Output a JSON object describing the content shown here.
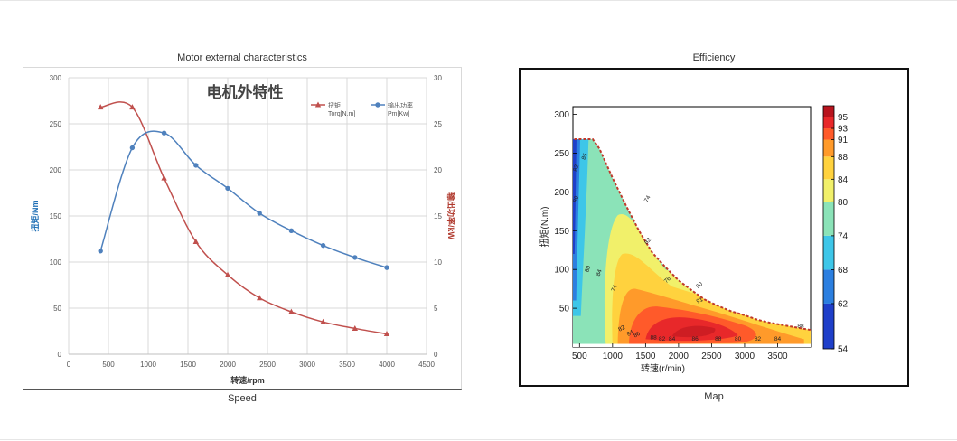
{
  "captions": {
    "left_top": "Motor external characteristics",
    "left_bottom": "Speed",
    "right_top": "Efficiency",
    "right_bottom": "Map"
  },
  "chart_data": [
    {
      "type": "line",
      "title": "电机外特性",
      "xlabel": "转速/rpm",
      "ylabel_left": "扭矩/Nm",
      "ylabel_right": "输出功率/kW",
      "xlim": [
        0,
        4500
      ],
      "ylim_left": [
        0,
        300
      ],
      "ylim_right": [
        0,
        30
      ],
      "x_ticks": [
        0,
        500,
        1000,
        1500,
        2000,
        2500,
        3000,
        3500,
        4000,
        4500
      ],
      "y_left_ticks": [
        0,
        50,
        100,
        150,
        200,
        250,
        300
      ],
      "y_right_ticks": [
        0,
        5,
        10,
        15,
        20,
        25,
        30
      ],
      "grid": true,
      "legend_position": "top-right",
      "series": [
        {
          "name": "扭矩",
          "name_unit": "Torq[N.m]",
          "axis": "left",
          "marker": "triangle",
          "color": "#c0504d",
          "x": [
            400,
            800,
            1200,
            1600,
            2000,
            2400,
            2800,
            3200,
            3600,
            4000
          ],
          "y": [
            268,
            268,
            191,
            122,
            86,
            61,
            46,
            35,
            28,
            22
          ]
        },
        {
          "name": "输出功率",
          "name_unit": "Pm[Kw]",
          "axis": "right",
          "marker": "circle",
          "color": "#4f81bd",
          "x": [
            400,
            800,
            1200,
            1600,
            2000,
            2400,
            2800,
            3200,
            3600,
            4000
          ],
          "y": [
            11.2,
            22.4,
            24.0,
            20.5,
            18.0,
            15.3,
            13.4,
            11.8,
            10.5,
            9.4
          ]
        }
      ]
    },
    {
      "type": "heatmap",
      "xlabel": "转速(r/min)",
      "ylabel": "扭矩(N.m)",
      "xlim": [
        400,
        4000
      ],
      "ylim": [
        0,
        310
      ],
      "x_ticks": [
        500,
        1000,
        1500,
        2000,
        2500,
        3000,
        3500
      ],
      "y_ticks": [
        50,
        100,
        150,
        200,
        250,
        300
      ],
      "colorbar_ticks": [
        54,
        62,
        68,
        74,
        80,
        84,
        88,
        91,
        93,
        95
      ],
      "contour_labels": [
        "82",
        "85",
        "89",
        "74",
        "80",
        "84",
        "74",
        "82",
        "76",
        "90",
        "91",
        "82",
        "84",
        "86",
        "88",
        "82",
        "84",
        "86",
        "88",
        "80",
        "82",
        "84",
        "88"
      ],
      "colors": {
        "c54": "#1f3fc9",
        "c62": "#2c7fe0",
        "c68": "#3ec6e8",
        "c74": "#8be3b8",
        "c80": "#f1f06a",
        "c84": "#ffd23e",
        "c88": "#ff9a2a",
        "c91": "#ff5a2a",
        "c93": "#e8282a",
        "c95": "#b8141e",
        "boundary": "#c0392b"
      }
    }
  ]
}
